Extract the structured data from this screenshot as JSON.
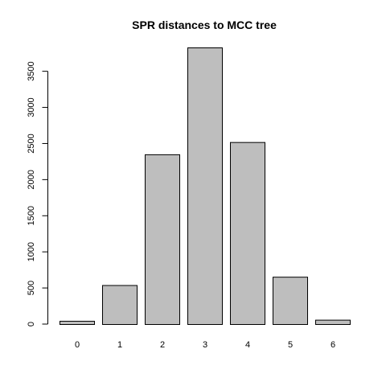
{
  "chart_data": {
    "type": "bar",
    "title": "SPR distances to MCC tree",
    "xlabel": "",
    "ylabel": "",
    "categories": [
      "0",
      "1",
      "2",
      "3",
      "4",
      "5",
      "6"
    ],
    "values": [
      45,
      540,
      2350,
      3830,
      2520,
      655,
      60
    ],
    "yticks": [
      0,
      500,
      1000,
      1500,
      2000,
      2500,
      3000,
      3500
    ],
    "ytick_labels": [
      "0",
      "500",
      "1000",
      "1500",
      "2000",
      "2500",
      "3000",
      "3500"
    ],
    "ylim": [
      0,
      3830
    ],
    "grid": false,
    "legend": "none",
    "bar_fill": "#bebebe",
    "bar_stroke": "#000000"
  }
}
